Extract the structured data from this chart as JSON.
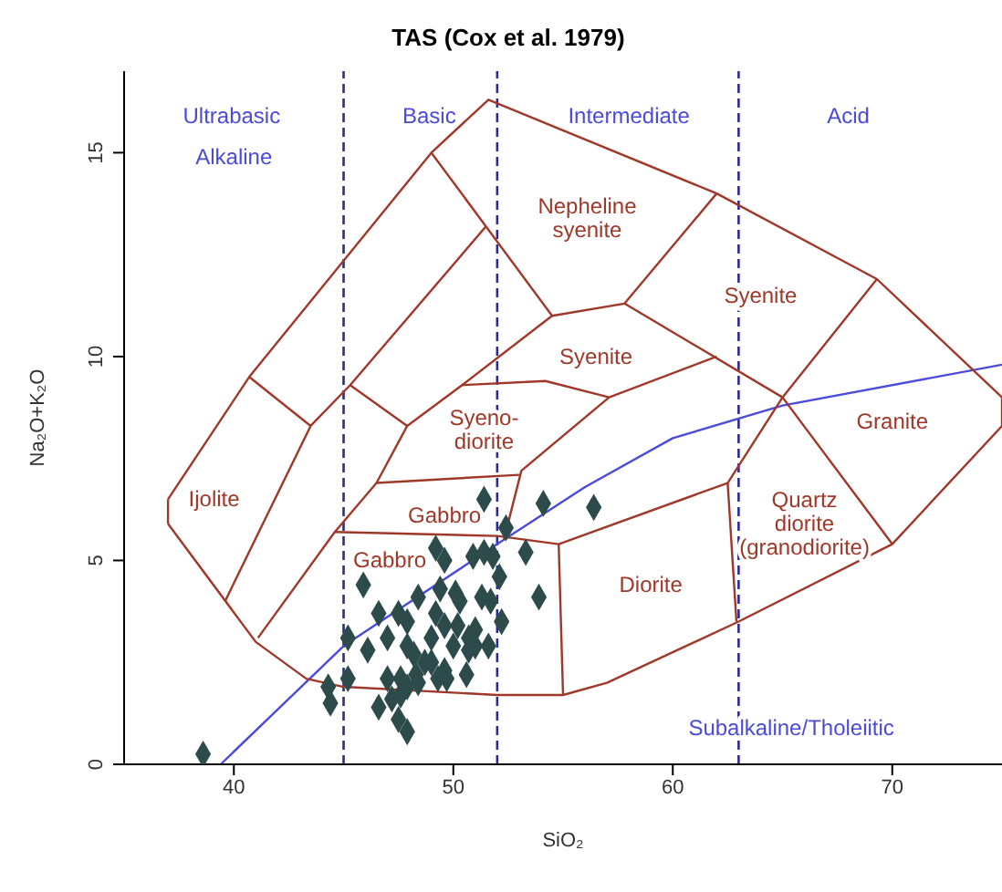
{
  "chart_data": {
    "type": "scatter",
    "title": "TAS (Cox et al. 1979)",
    "xlabel": "SiO₂",
    "ylabel": "Na₂O+K₂O",
    "xlim": [
      35,
      75
    ],
    "ylim": [
      0,
      17
    ],
    "xticks": [
      40,
      50,
      60,
      70
    ],
    "yticks": [
      0,
      5,
      10,
      15
    ],
    "grid": false,
    "series": [
      {
        "marker": "diamond",
        "color": "#2d4b4a",
        "x": [
          38.6,
          51.4,
          54.1,
          56.4,
          52.4,
          49.2,
          49.6,
          50.9,
          51.4,
          51.8,
          53.3,
          45.9,
          48.4,
          49.4,
          50.1,
          50.3,
          51.3,
          51.7,
          52.1,
          53.9,
          46.6,
          47.5,
          47.9,
          49.2,
          49.6,
          50.2,
          51.0,
          52.2,
          45.2,
          46.1,
          47.0,
          47.9,
          48.2,
          49.0,
          50.0,
          50.7,
          51.0,
          51.6,
          49.0,
          49.6,
          50.6,
          47.0,
          47.6,
          48.3,
          48.4,
          49.3,
          49.7,
          44.3,
          45.2,
          44.4,
          46.6,
          47.2,
          47.6,
          47.9,
          47.5,
          47.9,
          48.7,
          50.7
        ],
        "values": [
          0.25,
          6.5,
          6.4,
          6.3,
          5.8,
          5.3,
          5.0,
          5.1,
          5.2,
          5.1,
          5.2,
          4.4,
          4.1,
          4.3,
          4.2,
          4.0,
          4.1,
          4.0,
          4.6,
          4.1,
          3.7,
          3.7,
          3.5,
          3.7,
          3.4,
          3.4,
          3.3,
          3.5,
          3.1,
          2.8,
          3.1,
          2.9,
          2.7,
          3.1,
          2.9,
          3.1,
          2.9,
          2.9,
          2.5,
          2.3,
          2.2,
          2.1,
          2.1,
          2.2,
          2.0,
          2.1,
          2.1,
          1.9,
          2.1,
          1.5,
          1.4,
          1.6,
          1.7,
          1.9,
          1.1,
          0.8,
          2.5,
          2.8
        ]
      },
      {
        "type": "line",
        "color": "#4a4adc",
        "x": [
          39.4,
          45,
          52,
          56,
          60,
          65,
          75
        ],
        "values": [
          0,
          2.9,
          5.4,
          6.8,
          8.0,
          8.8,
          9.8
        ]
      },
      {
        "type": "line",
        "color": "#a0382a",
        "x": [
          37.0,
          41.0,
          43.3,
          45.0,
          52.0,
          55.0,
          57.0,
          63.0,
          70.0,
          75.0
        ],
        "values": [
          5.9,
          3.0,
          2.1,
          1.9,
          1.7,
          1.7,
          2.0,
          3.5,
          5.4,
          8.3
        ]
      },
      {
        "type": "line",
        "color": "#a0382a",
        "x": [
          37.0,
          40.7,
          49.0,
          51.6,
          62.0,
          69.3,
          75.0
        ],
        "values": [
          6.5,
          9.5,
          15.0,
          16.3,
          14.0,
          11.9,
          9.0
        ]
      },
      {
        "type": "line",
        "color": "#a0382a",
        "x": [
          37.0,
          37.0
        ],
        "values": [
          5.9,
          6.5
        ]
      },
      {
        "type": "line",
        "color": "#a0382a",
        "x": [
          75.0,
          75.0
        ],
        "values": [
          8.3,
          9.0
        ]
      },
      {
        "type": "line",
        "color": "#a0382a",
        "x": [
          39.6,
          43.5,
          45.3,
          51.5
        ],
        "values": [
          4.0,
          8.3,
          9.3,
          13.2
        ]
      },
      {
        "type": "line",
        "color": "#a0382a",
        "x": [
          40.7,
          43.5
        ],
        "values": [
          9.5,
          8.3
        ]
      },
      {
        "type": "line",
        "color": "#a0382a",
        "x": [
          41.1,
          44.6,
          46.5,
          47.9,
          50.4,
          54.5
        ],
        "values": [
          3.1,
          5.7,
          6.9,
          8.3,
          9.3,
          11.0
        ]
      },
      {
        "type": "line",
        "color": "#a0382a",
        "x": [
          45.3,
          47.9
        ],
        "values": [
          9.3,
          8.3
        ]
      },
      {
        "type": "line",
        "color": "#a0382a",
        "x": [
          49.0,
          54.5,
          57.8,
          62.0
        ],
        "values": [
          15.0,
          11.0,
          11.3,
          14.0
        ]
      },
      {
        "type": "line",
        "color": "#a0382a",
        "x": [
          57.8,
          65.0,
          70.0
        ],
        "values": [
          11.3,
          9.0,
          5.4
        ]
      },
      {
        "type": "line",
        "color": "#a0382a",
        "x": [
          50.4,
          54.2,
          57.1,
          62.0
        ],
        "values": [
          9.3,
          9.4,
          9.0,
          10.0
        ]
      },
      {
        "type": "line",
        "color": "#a0382a",
        "x": [
          52.3,
          53.1,
          57.1
        ],
        "values": [
          5.5,
          7.2,
          9.0
        ]
      },
      {
        "type": "line",
        "color": "#a0382a",
        "x": [
          46.5,
          53.0
        ],
        "values": [
          6.9,
          7.1
        ]
      },
      {
        "type": "line",
        "color": "#a0382a",
        "x": [
          44.6,
          52.0,
          54.8,
          62.5,
          65.0,
          69.3
        ],
        "values": [
          5.7,
          5.6,
          5.4,
          6.9,
          9.0,
          11.9
        ]
      },
      {
        "type": "line",
        "color": "#a0382a",
        "x": [
          62.5,
          62.9
        ],
        "values": [
          6.9,
          3.5
        ]
      },
      {
        "type": "line",
        "color": "#a0382a",
        "x": [
          54.8,
          55.0
        ],
        "values": [
          5.4,
          1.7
        ]
      }
    ],
    "ref_lines": [
      {
        "axis": "x",
        "value": 45,
        "color": "#2a2a9a",
        "line_style": "dashed"
      },
      {
        "axis": "x",
        "value": 52,
        "color": "#2a2a9a",
        "line_style": "dashed"
      },
      {
        "axis": "x",
        "value": 63,
        "color": "#2a2a9a",
        "line_style": "dashed"
      }
    ],
    "annotations": [
      "Ultrabasic",
      "Alkaline",
      "Basic",
      "Intermediate",
      "Acid",
      "Nepheline\nsyenite",
      "Syenite",
      "Syenite",
      "Syeno-\ndiorite",
      "Ijolite",
      "Gabbro",
      "Diorite",
      "Quartz\ndiorite\n(granodiorite)",
      "Granite",
      "Gabbro",
      "Subalkaline/Tholeiitic"
    ]
  }
}
